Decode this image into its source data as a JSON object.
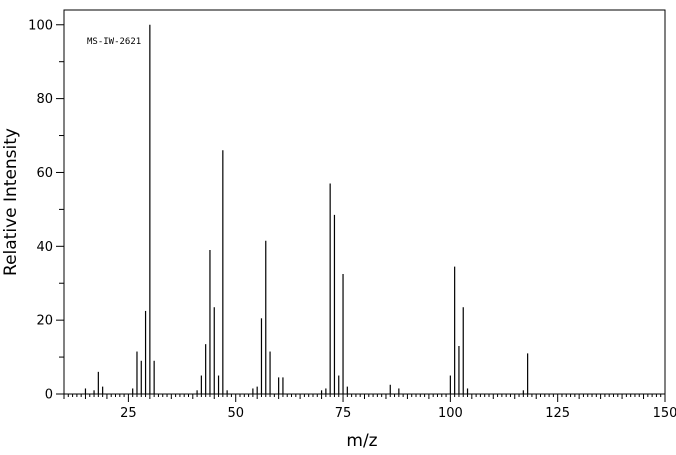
{
  "chart_data": {
    "type": "bar",
    "title": "",
    "annotation": "MS-IW-2621",
    "xlabel": "m/z",
    "ylabel": "Relative Intensity",
    "xlim": [
      10,
      150
    ],
    "ylim": [
      0,
      104
    ],
    "x_major_ticks": [
      25,
      50,
      75,
      100,
      125,
      150
    ],
    "y_major_ticks": [
      0,
      20,
      40,
      60,
      80,
      100
    ],
    "grid": false,
    "x": [
      15,
      17,
      18,
      19,
      26,
      27,
      28,
      29,
      30,
      31,
      41,
      42,
      43,
      44,
      45,
      46,
      47,
      48,
      54,
      55,
      56,
      57,
      58,
      60,
      61,
      70,
      71,
      72,
      73,
      74,
      75,
      76,
      86,
      88,
      100,
      101,
      102,
      103,
      104,
      117,
      118
    ],
    "values": [
      1.5,
      1,
      6,
      2,
      1.5,
      11.5,
      9,
      22.5,
      100,
      9,
      1,
      5,
      13.5,
      39,
      23.5,
      5,
      66,
      1,
      1.5,
      2,
      20.5,
      41.5,
      11.5,
      4.5,
      4.5,
      1,
      1.5,
      57,
      48.5,
      5,
      32.5,
      2,
      2.5,
      1.5,
      5,
      34.5,
      13,
      23.5,
      1.5,
      1,
      11
    ]
  }
}
